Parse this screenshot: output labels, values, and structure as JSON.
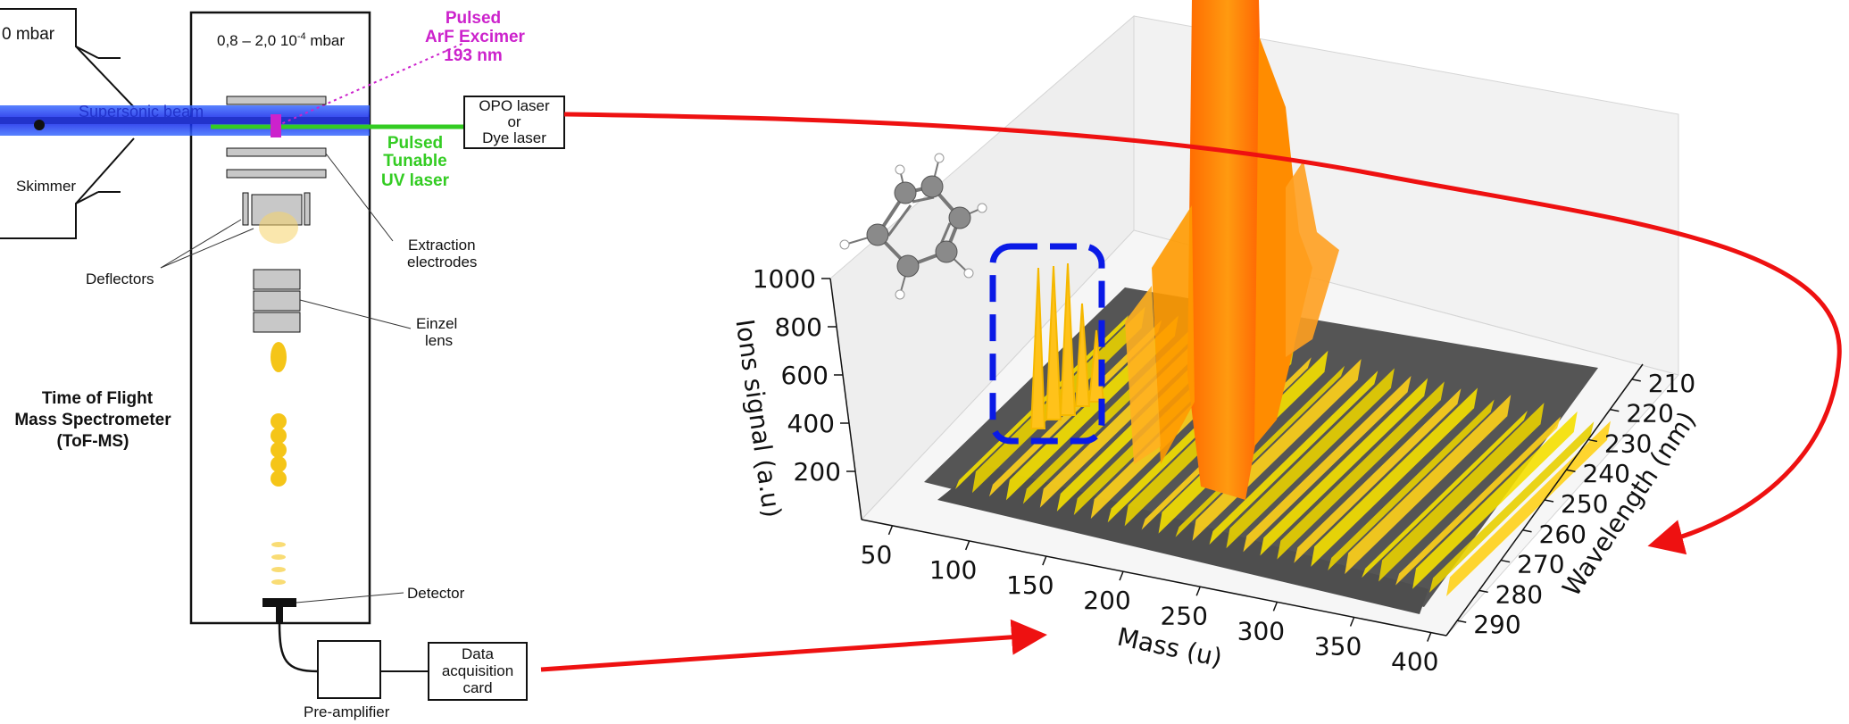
{
  "diagram": {
    "chamber_source_pressure": "0 mbar",
    "chamber_main_pressure": "0,8 – 2,0 10",
    "chamber_main_pressure_exp": "-4",
    "chamber_main_pressure_unit": " mbar",
    "supersonic_beam": "Supersonic beam",
    "skimmer": "Skimmer",
    "deflectors": "Deflectors",
    "extraction_line1": "Extraction",
    "extraction_line2": "electrodes",
    "einzel_line1": "Einzel",
    "einzel_line2": "lens",
    "tof_line1": "Time of Flight",
    "tof_line2": "Mass Spectrometer",
    "tof_line3": "(ToF-MS)",
    "detector": "Detector",
    "preamp": "Pre-amplifier",
    "daq_line1": "Data",
    "daq_line2": "acquisition",
    "daq_line3": "card",
    "excimer_line1": "Pulsed",
    "excimer_line2": "ArF Excimer",
    "excimer_line3": "193 nm",
    "uv_line1": "Pulsed",
    "uv_line2": "Tunable",
    "uv_line3": "UV laser",
    "opo_line1": "OPO laser",
    "opo_line2": "or",
    "opo_line3": "Dye laser"
  },
  "colors": {
    "beam": "#2233cc",
    "uv_laser": "#33cc22",
    "excimer": "#cc22cc",
    "arrow": "#ee1111",
    "highlight_box": "#0a1ae6",
    "peak": "#ff8a00",
    "floor": "#555555"
  },
  "chart_data": {
    "type": "surface3d",
    "title": "",
    "xlabel": "Mass (u)",
    "ylabel": "Wavelength (nm)",
    "zlabel": "Ions signal (a.u)",
    "x_ticks": [
      50,
      100,
      150,
      200,
      250,
      300,
      350,
      400
    ],
    "y_ticks": [
      210,
      220,
      230,
      240,
      250,
      260,
      270,
      280,
      290
    ],
    "z_ticks": [
      200,
      400,
      600,
      800,
      1000
    ],
    "xlim": [
      30,
      410
    ],
    "ylim": [
      205,
      295
    ],
    "zlim": [
      0,
      1000
    ],
    "peaks": [
      {
        "mass": 78,
        "wavelength": 230,
        "signal": 700
      },
      {
        "mass": 78,
        "wavelength": 240,
        "signal": 750
      },
      {
        "mass": 78,
        "wavelength": 250,
        "signal": 650
      },
      {
        "mass": 78,
        "wavelength": 260,
        "signal": 600
      },
      {
        "mass": 210,
        "wavelength": 220,
        "signal": 1000
      },
      {
        "mass": 215,
        "wavelength": 215,
        "signal": 1000
      },
      {
        "mass": 225,
        "wavelength": 225,
        "signal": 700
      },
      {
        "mass": 235,
        "wavelength": 220,
        "signal": 600
      }
    ]
  }
}
